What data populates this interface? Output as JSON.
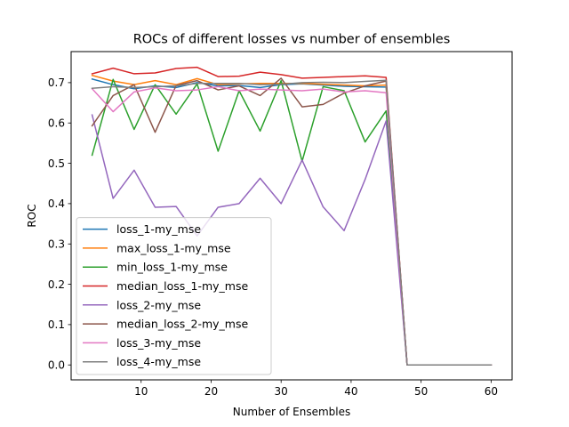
{
  "chart_data": {
    "type": "line",
    "title": "ROCs of different losses vs number of ensembles",
    "xlabel": "Number of Ensembles",
    "ylabel": "ROC",
    "xlim": [
      0,
      63
    ],
    "ylim": [
      -0.037,
      0.777
    ],
    "xticks": [
      10,
      20,
      30,
      40,
      50,
      60
    ],
    "yticks": [
      0.0,
      0.1,
      0.2,
      0.3,
      0.4,
      0.5,
      0.6,
      0.7
    ],
    "grid": false,
    "legend_position": "lower-left",
    "x": [
      3,
      6,
      9,
      12,
      15,
      18,
      21,
      24,
      27,
      30,
      33,
      36,
      39,
      42,
      45,
      48,
      51,
      54,
      57,
      60
    ],
    "series": [
      {
        "name": "loss_1-my_mse",
        "color": "#1f77b4",
        "values": [
          0.709,
          0.695,
          0.685,
          0.692,
          0.688,
          0.7,
          0.692,
          0.693,
          0.688,
          0.695,
          0.697,
          0.694,
          0.691,
          0.69,
          0.689,
          0.0,
          0.0,
          0.0,
          0.0,
          0.0
        ]
      },
      {
        "name": "max_loss_1-my_mse",
        "color": "#ff7f0e",
        "values": [
          0.718,
          0.704,
          0.695,
          0.705,
          0.695,
          0.71,
          0.695,
          0.697,
          0.698,
          0.698,
          0.698,
          0.696,
          0.694,
          0.692,
          0.694,
          0.0,
          0.0,
          0.0,
          0.0,
          0.0
        ]
      },
      {
        "name": "min_loss_1-my_mse",
        "color": "#2ca02c",
        "values": [
          0.52,
          0.708,
          0.584,
          0.695,
          0.622,
          0.697,
          0.53,
          0.68,
          0.58,
          0.705,
          0.505,
          0.69,
          0.68,
          0.553,
          0.63,
          0.0,
          0.0,
          0.0,
          0.0,
          0.0
        ]
      },
      {
        "name": "median_loss_1-my_mse",
        "color": "#d62728",
        "values": [
          0.722,
          0.736,
          0.722,
          0.724,
          0.735,
          0.738,
          0.715,
          0.716,
          0.726,
          0.72,
          0.711,
          0.713,
          0.715,
          0.717,
          0.713,
          0.0,
          0.0,
          0.0,
          0.0,
          0.0
        ]
      },
      {
        "name": "loss_2-my_mse",
        "color": "#9467bd",
        "values": [
          0.62,
          0.413,
          0.483,
          0.391,
          0.393,
          0.32,
          0.391,
          0.4,
          0.463,
          0.4,
          0.508,
          0.392,
          0.333,
          0.46,
          0.605,
          0.0,
          0.0,
          0.0,
          0.0,
          0.0
        ]
      },
      {
        "name": "median_loss_2-my_mse",
        "color": "#8c564b",
        "values": [
          0.593,
          0.668,
          0.695,
          0.577,
          0.693,
          0.705,
          0.682,
          0.692,
          0.668,
          0.711,
          0.64,
          0.646,
          0.674,
          0.692,
          0.704,
          0.0,
          0.0,
          0.0,
          0.0,
          0.0
        ]
      },
      {
        "name": "loss_3-my_mse",
        "color": "#e377c2",
        "values": [
          0.685,
          0.628,
          0.677,
          0.687,
          0.68,
          0.682,
          0.69,
          0.68,
          0.684,
          0.682,
          0.68,
          0.684,
          0.677,
          0.68,
          0.675,
          0.0,
          0.0,
          0.0,
          0.0,
          0.0
        ]
      },
      {
        "name": "loss_4-my_mse",
        "color": "#7f7f7f",
        "values": [
          0.686,
          0.69,
          0.688,
          0.69,
          0.692,
          0.698,
          0.698,
          0.698,
          0.695,
          0.696,
          0.7,
          0.701,
          0.7,
          0.703,
          0.706,
          0.0,
          0.0,
          0.0,
          0.0,
          0.0
        ]
      }
    ]
  }
}
